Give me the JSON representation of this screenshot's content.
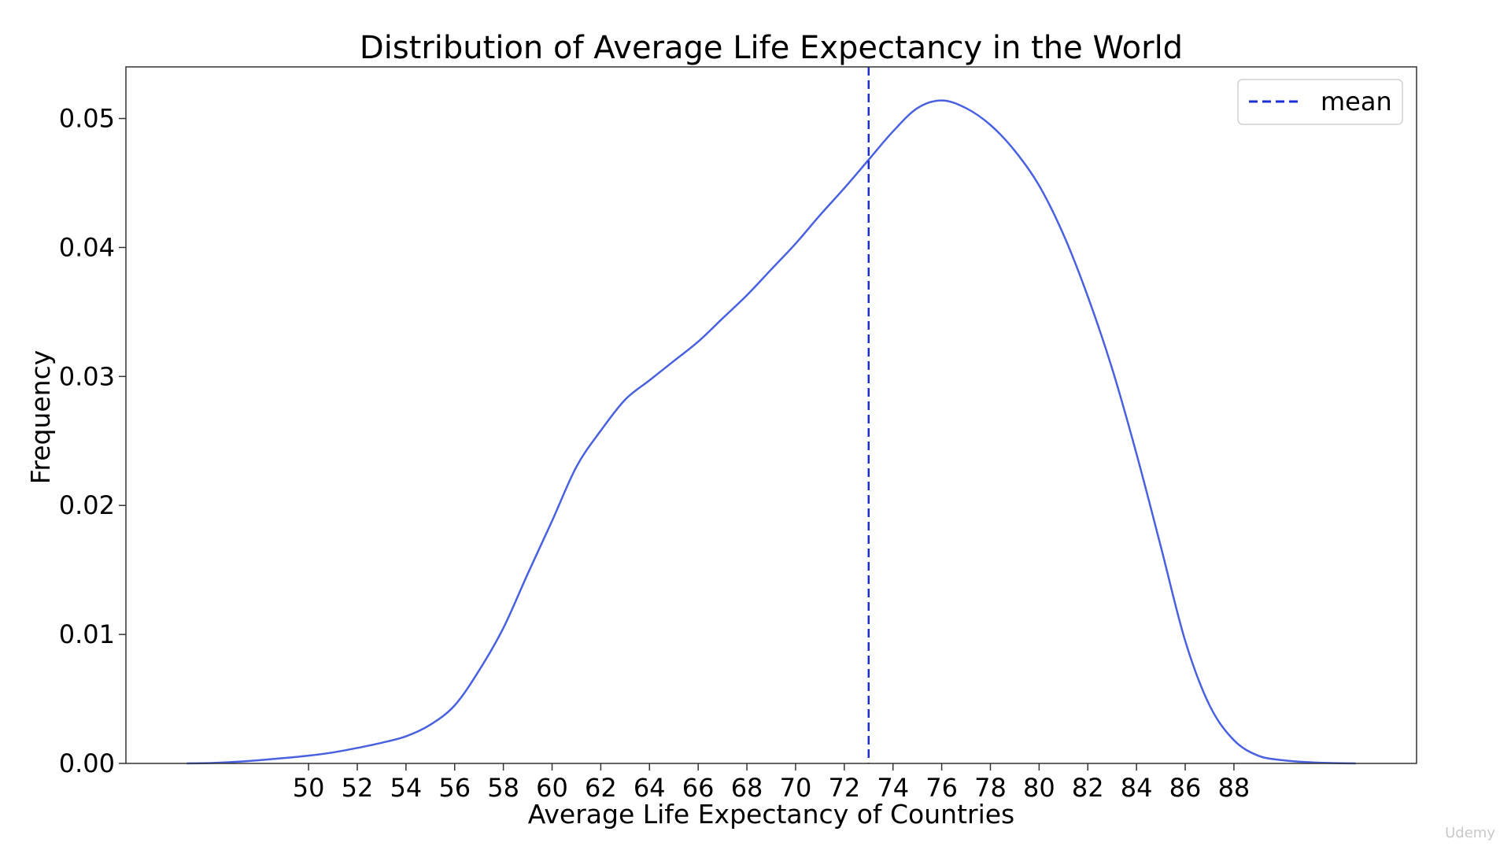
{
  "chart_data": {
    "type": "line",
    "title": "Distribution of Average Life Expectancy in the World",
    "xlabel": "Average Life Expectancy of Countries",
    "ylabel": "Frequency",
    "xlim": [
      42.5,
      95.5
    ],
    "ylim": [
      0,
      0.054
    ],
    "x_ticks": [
      "50",
      "52",
      "54",
      "56",
      "58",
      "60",
      "62",
      "64",
      "66",
      "68",
      "70",
      "72",
      "74",
      "76",
      "78",
      "80",
      "82",
      "84",
      "86",
      "88"
    ],
    "y_ticks": [
      "0.00",
      "0.01",
      "0.02",
      "0.03",
      "0.04",
      "0.05"
    ],
    "grid": false,
    "legend_position": "top-right",
    "series": [
      {
        "name": "",
        "color": "#4961e0",
        "x": [
          45,
          46,
          47,
          48,
          49,
          50,
          51,
          52,
          53,
          54,
          55,
          56,
          57,
          58,
          59,
          60,
          61,
          62,
          63,
          64,
          65,
          66,
          67,
          68,
          69,
          70,
          71,
          72,
          73,
          74,
          75,
          76,
          77,
          78,
          79,
          80,
          81,
          82,
          83,
          84,
          85,
          86,
          87,
          88,
          89,
          90,
          91,
          92,
          93
        ],
        "y": [
          0.0,
          3e-05,
          0.00012,
          0.00025,
          0.00042,
          0.0006,
          0.00085,
          0.0012,
          0.0016,
          0.0021,
          0.003,
          0.0045,
          0.0072,
          0.0105,
          0.0147,
          0.0188,
          0.023,
          0.0258,
          0.0282,
          0.0297,
          0.0312,
          0.0327,
          0.0345,
          0.0363,
          0.0383,
          0.0403,
          0.0425,
          0.0446,
          0.0468,
          0.049,
          0.0508,
          0.0514,
          0.0508,
          0.0495,
          0.0475,
          0.0448,
          0.041,
          0.0362,
          0.0306,
          0.024,
          0.0168,
          0.0095,
          0.0045,
          0.0018,
          0.0006,
          0.00025,
          0.0001,
          3e-05,
          0.0
        ]
      },
      {
        "name": "mean",
        "type": "vline",
        "x": 73,
        "color": "#1b2fd6",
        "style": "dashed"
      }
    ],
    "watermark": "Udemy"
  }
}
